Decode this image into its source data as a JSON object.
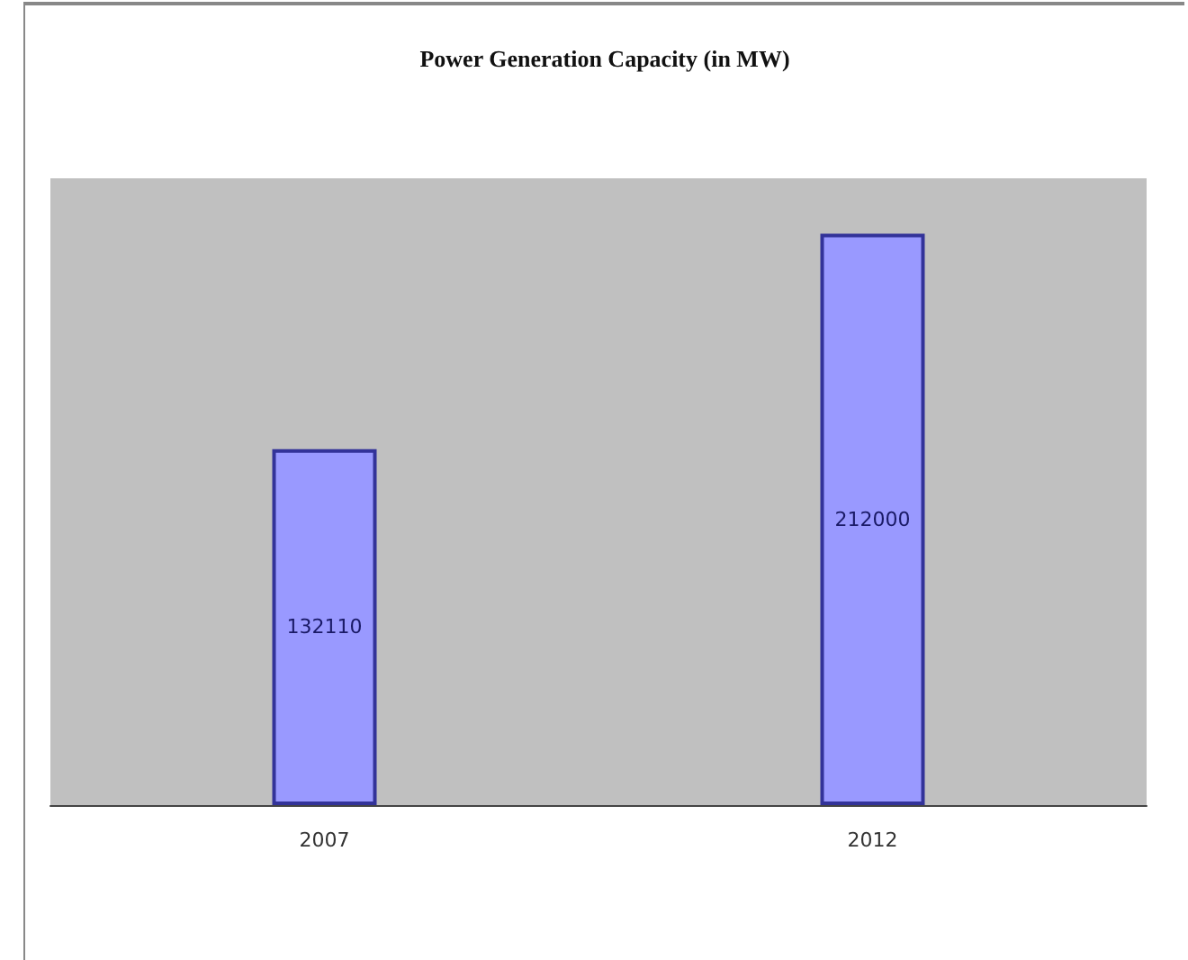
{
  "chart_data": {
    "type": "bar",
    "title": "Power Generation Capacity (in MW)",
    "categories": [
      "2007",
      "2012"
    ],
    "values": [
      132110,
      212000
    ],
    "color": "#9999ff",
    "data_labels": true
  }
}
